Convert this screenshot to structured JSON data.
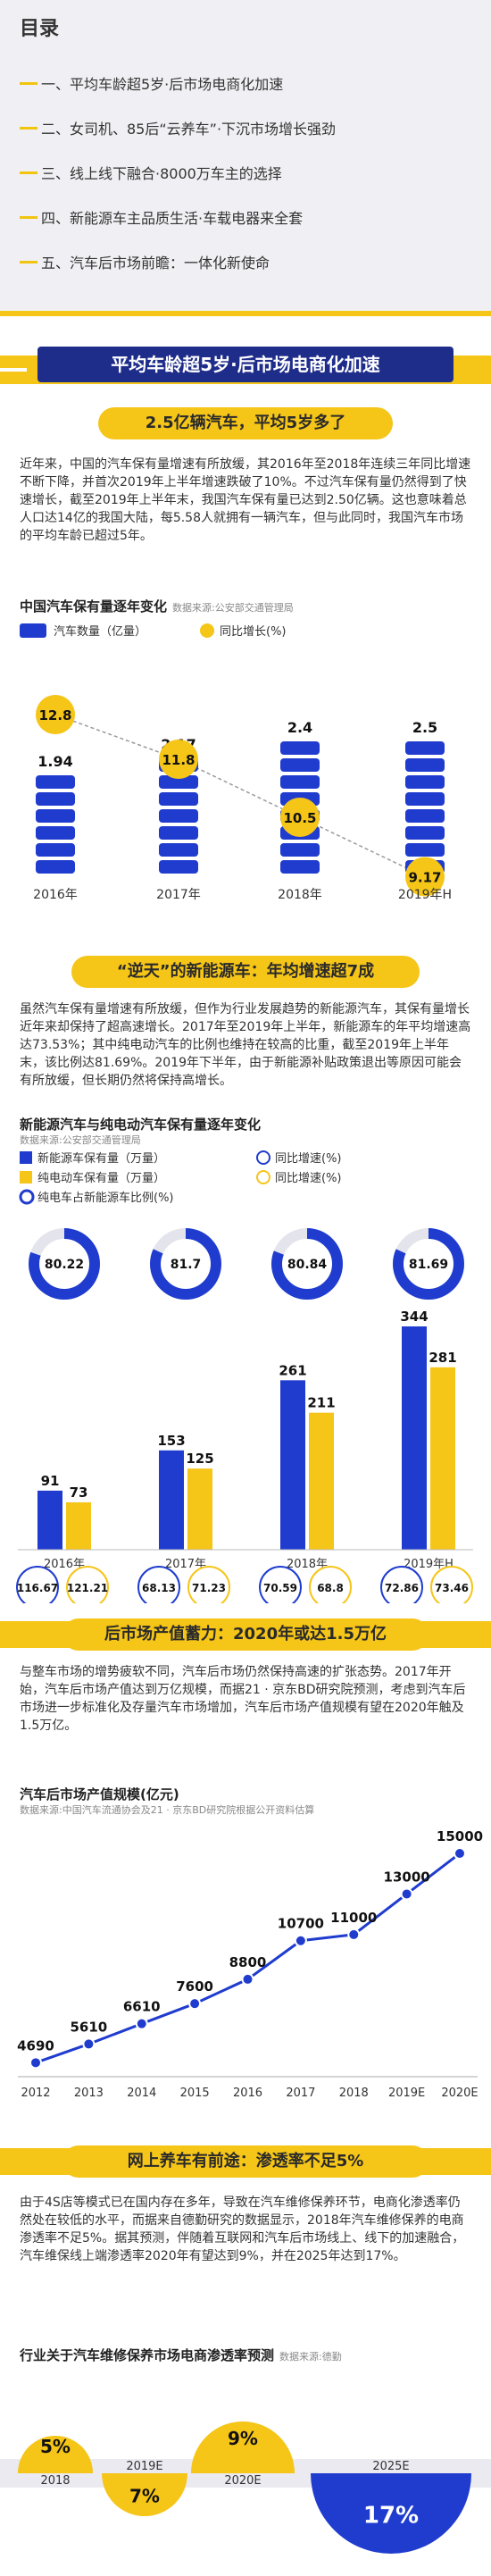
{
  "toc": {
    "title": "目录",
    "items": [
      "一、平均车龄超5岁·后市场电商化加速",
      "二、女司机、85后“云养车”·下沉市场增长强劲",
      "三、线上线下融合·8000万车主的选择",
      "四、新能源车主品质生活·车载电器来全套",
      "五、汽车后市场前瞻：一体化新使命"
    ]
  },
  "section1": {
    "header": "平均车龄超5岁·后市场电商化加速",
    "sub1": "2.5亿辆汽车，平均5岁多了",
    "para1": "近年来，中国的汽车保有量增速有所放缓，其2016年至2018年连续三年同比增速不断下降，并首次2019年上半年增速跌破了10%。不过汽车保有量仍然得到了快速增长，截至2019年上半年末，我国汽车保有量已达到2.50亿辆。这也意味着总人口达14亿的我国大陆，每5.58人就拥有一辆汽车，但与此同时，我国汽车市场的平均车龄已超过5年。",
    "chart1_title": "中国汽车保有量逐年变化",
    "chart1_source": "数据来源:公安部交通管理局",
    "chart1_legend_a": "汽车数量（亿量）",
    "chart1_legend_b": "同比增长(%)",
    "sub2": "“逆天”的新能源车：年均增速超7成",
    "para2": "虽然汽车保有量增速有所放缓，但作为行业发展趋势的新能源汽车，其保有量增长近年来却保持了超高速增长。2017年至2019年上半年，新能源车的年平均增速高达73.53%；其中纯电动汽车的比例也维持在较高的比重，截至2019年上半年末，该比例达81.69%。2019年下半年，由于新能源补贴政策退出等原因可能会有所放缓，但长期仍然将保持高增长。",
    "chart2_title": "新能源汽车与纯电动汽车保有量逐年变化",
    "chart2_source": "数据来源:公安部交通管理局",
    "chart2_legend": [
      "新能源车保有量（万量）",
      "同比增速(%)",
      "纯电动车保有量（万量）",
      "同比增速(%)",
      "纯电车占新能源车比例(%)"
    ],
    "sub3": "后市场产值蓄力：2020年或达1.5万亿",
    "para3": "与整车市场的增势疲软不同，汽车后市场仍然保持高速的扩张态势。2017年开始，汽车后市场产值达到万亿规模，而据21 · 京东BD研究院预测，考虑到汽车后市场进一步标准化及存量汽车市场增加，汽车后市场产值规模有望在2020年触及1.5万亿。",
    "chart3_title": "汽车后市场产值规模(亿元)",
    "chart3_source": "数据来源:中国汽车流通协会及21 · 京东BD研究院根据公开资料估算",
    "sub4": "网上养车有前途：渗透率不足5%",
    "para4": "由于4S店等模式已在国内存在多年，导致在汽车维修保养环节，电商化渗透率仍然处在较低的水平，而据来自德勤研究的数据显示，2018年汽车维修保养的电商渗透率不足5%。据其预测，伴随着互联网和汽车后市场线上、线下的加速融合，汽车维保线上端渗透率2020年有望达到9%，并在2025年达到17%。",
    "chart4_title": "行业关于汽车维修保养市场电商渗透率预测",
    "chart4_source": "数据来源:德勤"
  },
  "chart_data": [
    {
      "type": "bar",
      "title": "中国汽车保有量逐年变化",
      "categories": [
        "2016年",
        "2017年",
        "2018年",
        "2019年H"
      ],
      "series": [
        {
          "name": "汽车数量（亿量）",
          "values": [
            1.94,
            2.17,
            2.4,
            2.5
          ]
        },
        {
          "name": "同比增长(%)",
          "values": [
            12.8,
            11.8,
            10.5,
            9.17
          ]
        }
      ]
    },
    {
      "type": "bar",
      "title": "新能源汽车与纯电动汽车保有量逐年变化",
      "categories": [
        "2016年",
        "2017年",
        "2018年",
        "2019年H"
      ],
      "series": [
        {
          "name": "新能源车保有量（万量）",
          "values": [
            91,
            153,
            261,
            344
          ]
        },
        {
          "name": "纯电动车保有量（万量）",
          "values": [
            73,
            125,
            211,
            281
          ]
        },
        {
          "name": "纯电车占新能源车比例(%)",
          "values": [
            80.22,
            81.7,
            80.84,
            81.69
          ]
        },
        {
          "name": "同比增速(%)",
          "values": [
            116.67,
            68.13,
            70.59,
            72.86
          ]
        },
        {
          "name": "同比增速(%)",
          "values": [
            121.21,
            71.23,
            68.8,
            73.46
          ]
        }
      ]
    },
    {
      "type": "line",
      "title": "汽车后市场产值规模(亿元)",
      "categories": [
        "2012",
        "2013",
        "2014",
        "2015",
        "2016",
        "2017",
        "2018",
        "2019E",
        "2020E"
      ],
      "values": [
        4690,
        5610,
        6610,
        7600,
        8800,
        10700,
        11000,
        13000,
        15000
      ]
    },
    {
      "type": "area",
      "title": "行业关于汽车维修保养市场电商渗透率预测",
      "categories": [
        "2018",
        "2019E",
        "2020E",
        "2025E"
      ],
      "values": [
        "5%",
        "7%",
        "9%",
        "17%"
      ]
    }
  ]
}
